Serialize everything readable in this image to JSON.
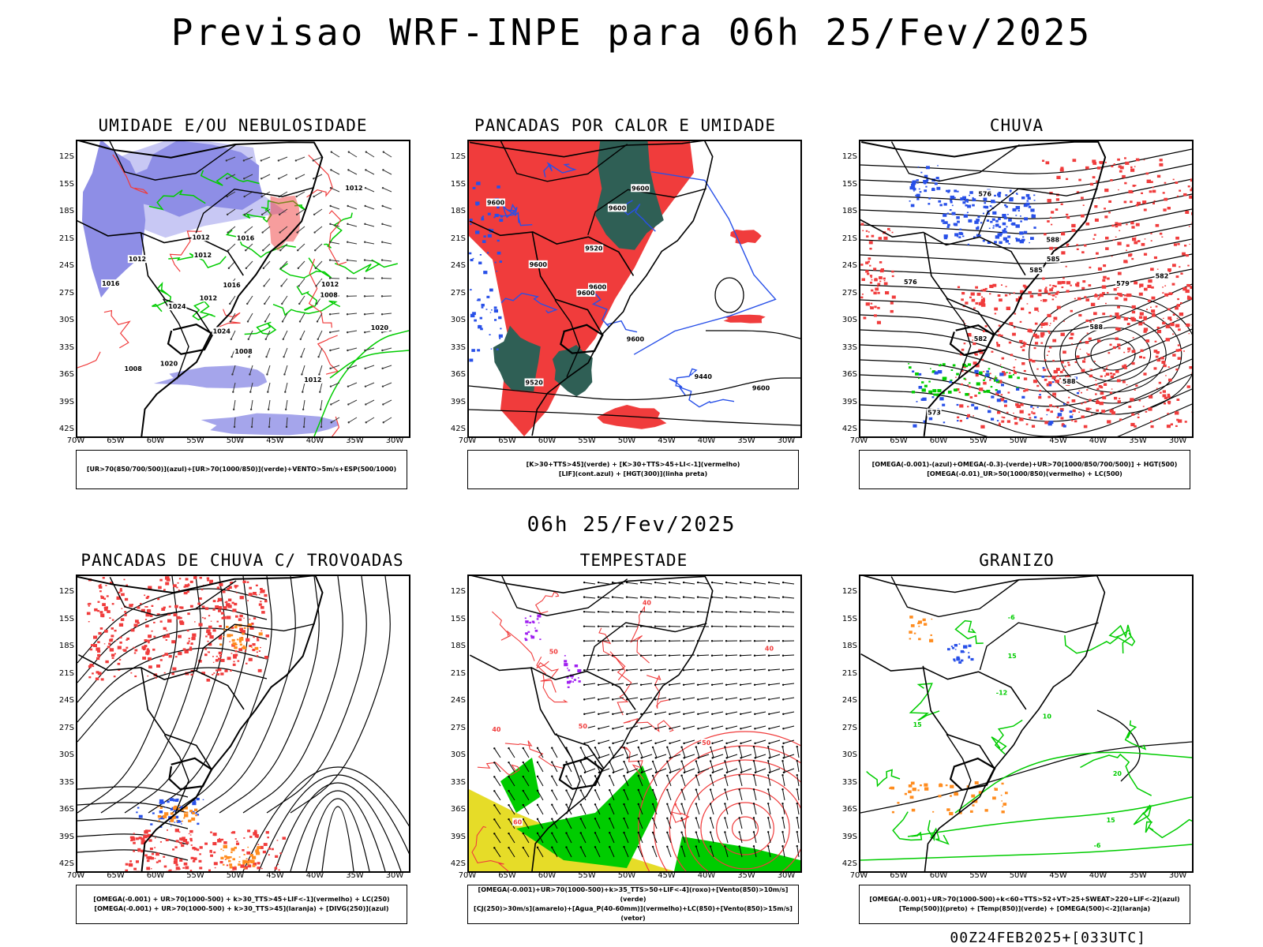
{
  "title": "Previsao WRF-INPE  para 06h 25/Fev/2025",
  "valid_time": "06h 25/Fev/2025",
  "run_info": "00Z24FEB2025+[033UTC]",
  "lat_labels": [
    "12S",
    "15S",
    "18S",
    "21S",
    "24S",
    "27S",
    "30S",
    "33S",
    "36S",
    "39S",
    "42S"
  ],
  "lon_labels": [
    "70W",
    "65W",
    "60W",
    "55W",
    "50W",
    "45W",
    "40W",
    "35W",
    "30W"
  ],
  "colors": {
    "blue_fill": "#8e8ee6",
    "blue_light": "#c8c8f4",
    "green": "#00cc00",
    "red": "#f03c3c",
    "dark_green": "#2f5f55",
    "blue_contour": "#2850e8",
    "yellow": "#e6dc28",
    "orange": "#ff8c1e",
    "purple": "#a020f0"
  },
  "panels": [
    {
      "id": "umidade",
      "title": "UMIDADE E/OU NEBULOSIDADE",
      "legend": [
        "[UR>70(850/700/500)](azul)+[UR>70(1000/850)](verde)+VENTO>5m/s+ESP(500/1000)"
      ],
      "contour_labels": [
        "1012",
        "1012",
        "1012",
        "1020",
        "1016",
        "1012",
        "1016",
        "1012",
        "1008",
        "1012",
        "1020",
        "1024",
        "1024",
        "1016",
        "1012",
        "1008",
        "1008"
      ]
    },
    {
      "id": "pancadas_calor",
      "title": "PANCADAS POR CALOR E UMIDADE",
      "legend": [
        "[K>30+TTS>45](verde) + [K>30+TTS>45+LI<-1](vermelho)",
        "[LIF](cont.azul) + [HGT(300)](linha preta)"
      ],
      "contour_labels": [
        "9600",
        "9600",
        "9600",
        "9600",
        "9600",
        "9520",
        "9600",
        "9600",
        "9440",
        "9520",
        "9600"
      ]
    },
    {
      "id": "chuva",
      "title": "CHUVA",
      "legend": [
        "[OMEGA(-0.001)-(azul)+OMEGA(-0.3)-(verde)+UR>70(1000/850/700/500)] + HGT(500)",
        "[OMEGA(-0.01)_UR>50(1000/850)(vermelho) + LC(500)"
      ],
      "contour_labels": [
        "588",
        "585",
        "588",
        "588",
        "585",
        "582",
        "579",
        "576",
        "573",
        "576",
        "582"
      ]
    },
    {
      "id": "trovoadas",
      "title": "PANCADAS DE CHUVA C/ TROVOADAS",
      "legend": [
        "[OMEGA(-0.001) + UR>70(1000-500) + k>30_TTS>45+LIF<-1](vermelho) + LC(250)",
        "[OMEGA(-0.001) + UR>70(1000-500) + k>30_TTS>45](laranja) + [DIVG(250)](azul)"
      ],
      "contour_labels": []
    },
    {
      "id": "tempestade",
      "title": "TEMPESTADE",
      "legend": [
        "[OMEGA(-0.001)+UR>70(1000-500)+k>35_TTS>50+LIF<-4](roxo)+[Vento(850)>10m/s](verde)",
        "[CJ(250)>30m/s](amarelo)+[Agua_P(40-60mm)](vermelho)+LC(850)+[Vento(850)>15m/s](vetor)"
      ],
      "contour_labels": [
        "40",
        "50",
        "40",
        "50",
        "40",
        "60",
        "50"
      ]
    },
    {
      "id": "granizo",
      "title": "GRANIZO",
      "legend": [
        "[OMEGA(-0.001)+UR>70(1000-500)+k<60+TTS>52+VT>25+SWEAT>220+LIF<-2](azul)",
        "[Temp(500)](preto) + [Temp(850)](verde) + [OMEGA(500)<-2](laranja)"
      ],
      "contour_labels": [
        "-6",
        "-6",
        "15",
        "20",
        "15",
        "-12",
        "10",
        "15"
      ]
    }
  ]
}
